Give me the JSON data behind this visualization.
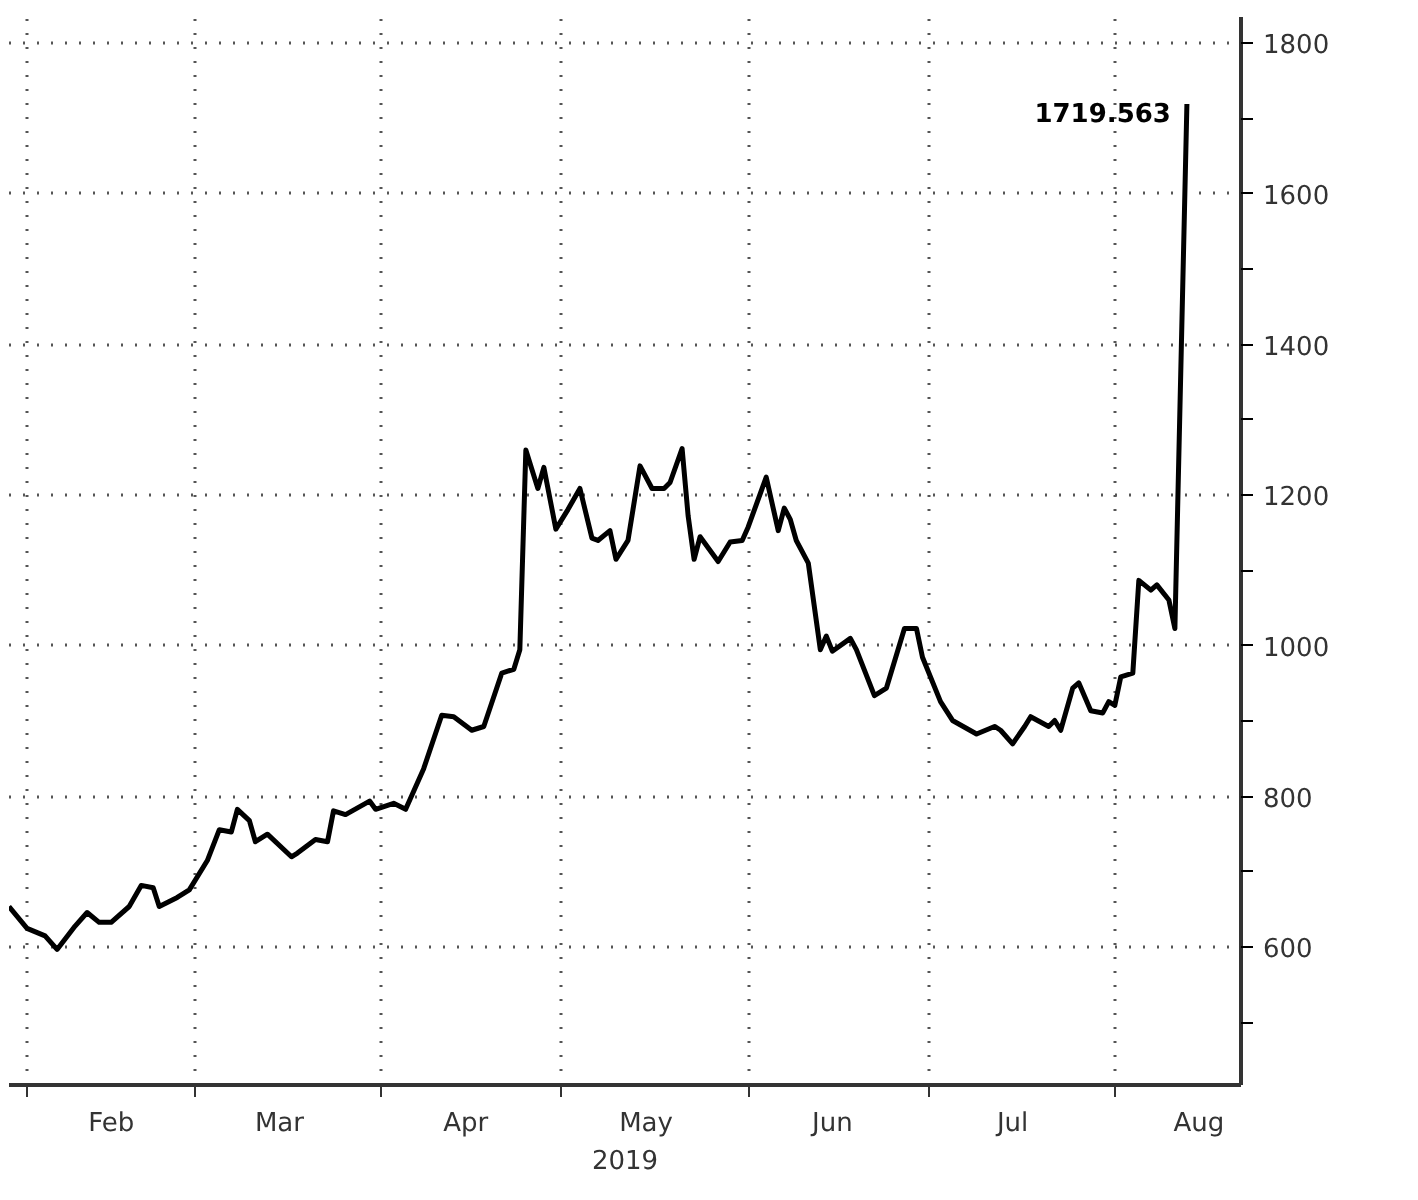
{
  "chart_data": {
    "type": "line",
    "xlabel": "2019",
    "x": [
      "2019-01-29",
      "2019-02-01",
      "2019-02-04",
      "2019-02-06",
      "2019-02-09",
      "2019-02-11",
      "2019-02-13",
      "2019-02-15",
      "2019-02-18",
      "2019-02-20",
      "2019-02-22",
      "2019-02-23",
      "2019-02-26",
      "2019-02-28",
      "2019-03-03",
      "2019-03-05",
      "2019-03-07",
      "2019-03-08",
      "2019-03-10",
      "2019-03-11",
      "2019-03-13",
      "2019-03-17",
      "2019-03-18",
      "2019-03-21",
      "2019-03-23",
      "2019-03-24",
      "2019-03-26",
      "2019-03-30",
      "2019-03-31",
      "2019-04-03",
      "2019-04-05",
      "2019-04-08",
      "2019-04-11",
      "2019-04-13",
      "2019-04-16",
      "2019-04-18",
      "2019-04-21",
      "2019-04-23",
      "2019-04-24",
      "2019-04-25",
      "2019-04-27",
      "2019-04-28",
      "2019-04-30",
      "2019-05-02",
      "2019-05-04",
      "2019-05-06",
      "2019-05-07",
      "2019-05-09",
      "2019-05-10",
      "2019-05-12",
      "2019-05-14",
      "2019-05-16",
      "2019-05-18",
      "2019-05-19",
      "2019-05-21",
      "2019-05-22",
      "2019-05-23",
      "2019-05-24",
      "2019-05-27",
      "2019-05-29",
      "2019-05-31",
      "2019-06-01",
      "2019-06-04",
      "2019-06-06",
      "2019-06-07",
      "2019-06-08",
      "2019-06-09",
      "2019-06-11",
      "2019-06-13",
      "2019-06-14",
      "2019-06-15",
      "2019-06-18",
      "2019-06-19",
      "2019-06-22",
      "2019-06-24",
      "2019-06-27",
      "2019-06-29",
      "2019-06-30",
      "2019-07-03",
      "2019-07-05",
      "2019-07-09",
      "2019-07-12",
      "2019-07-13",
      "2019-07-15",
      "2019-07-17",
      "2019-07-18",
      "2019-07-21",
      "2019-07-22",
      "2019-07-23",
      "2019-07-25",
      "2019-07-26",
      "2019-07-28",
      "2019-07-30",
      "2019-07-31",
      "2019-08-01",
      "2019-08-02",
      "2019-08-04",
      "2019-08-05",
      "2019-08-07",
      "2019-08-08",
      "2019-08-10",
      "2019-08-11",
      "2019-08-13"
    ],
    "series": [
      {
        "color": "#000000",
        "values": [
          654,
          625,
          615,
          597,
          628,
          646,
          633,
          633,
          654,
          682,
          679,
          654,
          666,
          676,
          715,
          756,
          753,
          783,
          768,
          740,
          750,
          720,
          725,
          743,
          740,
          781,
          776,
          794,
          783,
          791,
          783,
          837,
          908,
          906,
          888,
          893,
          964,
          969,
          995,
          1260,
          1209,
          1237,
          1155,
          1181,
          1209,
          1143,
          1140,
          1153,
          1115,
          1140,
          1239,
          1209,
          1209,
          1217,
          1262,
          1173,
          1115,
          1145,
          1112,
          1138,
          1140,
          1158,
          1224,
          1153,
          1183,
          1168,
          1140,
          1110,
          995,
          1013,
          993,
          1010,
          995,
          934,
          944,
          1023,
          1023,
          985,
          926,
          901,
          883,
          893,
          888,
          870,
          893,
          906,
          893,
          901,
          888,
          944,
          951,
          914,
          911,
          926,
          921,
          959,
          964,
          1087,
          1074,
          1081,
          1061,
          1023,
          1719.563
        ]
      }
    ],
    "xlim": [
      "2019-01-29",
      "2019-08-22"
    ],
    "xticks": [
      {
        "value": "2019-02-01",
        "label": null
      },
      {
        "value": "2019-03-01",
        "label": null
      },
      {
        "value": "2019-04-01",
        "label": null
      },
      {
        "value": "2019-05-01",
        "label": null
      },
      {
        "value": "2019-06-01",
        "label": null
      },
      {
        "value": "2019-07-01",
        "label": null
      },
      {
        "value": "2019-08-01",
        "label": null
      },
      {
        "value": "2019-02-15",
        "label": "Feb"
      },
      {
        "value": "2019-03-15",
        "label": "Mar"
      },
      {
        "value": "2019-04-15",
        "label": "Apr"
      },
      {
        "value": "2019-05-15",
        "label": "May"
      },
      {
        "value": "2019-06-15",
        "label": "Jun"
      },
      {
        "value": "2019-07-15",
        "label": "Jul"
      },
      {
        "value": "2019-08-15",
        "label": "Aug"
      }
    ],
    "ylim": [
      417,
      1835
    ],
    "yticks": [
      {
        "value": 500,
        "label": null
      },
      600,
      {
        "value": 700,
        "label": null
      },
      800,
      {
        "value": 900,
        "label": null
      },
      1000,
      {
        "value": 1100,
        "label": null
      },
      1200,
      {
        "value": 1300,
        "label": null
      },
      1400,
      {
        "value": 1500,
        "label": null
      },
      1600,
      {
        "value": 1700,
        "label": null
      },
      1800
    ],
    "grid": true,
    "marker": "none",
    "line_style": "solid",
    "annotations": [
      {
        "text": "1719.563",
        "x": "2019-08-13",
        "y": 1719.563
      }
    ]
  }
}
